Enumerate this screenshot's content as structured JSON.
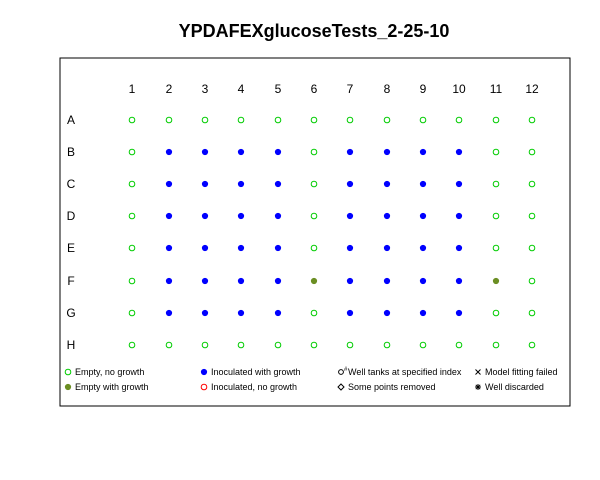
{
  "chart_data": {
    "type": "scatter",
    "title": "YPDAFEXglucoseTests_2-25-10",
    "columns": [
      "1",
      "2",
      "3",
      "4",
      "5",
      "6",
      "7",
      "8",
      "9",
      "10",
      "11",
      "12"
    ],
    "rows": [
      "A",
      "B",
      "C",
      "D",
      "E",
      "F",
      "G",
      "H"
    ],
    "wells": [
      [
        "e",
        "e",
        "e",
        "e",
        "e",
        "e",
        "e",
        "e",
        "e",
        "e",
        "e",
        "e"
      ],
      [
        "e",
        "i",
        "i",
        "i",
        "i",
        "e",
        "i",
        "i",
        "i",
        "i",
        "e",
        "e"
      ],
      [
        "e",
        "i",
        "i",
        "i",
        "i",
        "e",
        "i",
        "i",
        "i",
        "i",
        "e",
        "e"
      ],
      [
        "e",
        "i",
        "i",
        "i",
        "i",
        "e",
        "i",
        "i",
        "i",
        "i",
        "e",
        "e"
      ],
      [
        "e",
        "i",
        "i",
        "i",
        "i",
        "e",
        "i",
        "i",
        "i",
        "i",
        "e",
        "e"
      ],
      [
        "e",
        "i",
        "i",
        "i",
        "i",
        "g",
        "i",
        "i",
        "i",
        "i",
        "g",
        "e"
      ],
      [
        "e",
        "i",
        "i",
        "i",
        "i",
        "e",
        "i",
        "i",
        "i",
        "i",
        "e",
        "e"
      ],
      [
        "e",
        "e",
        "e",
        "e",
        "e",
        "e",
        "e",
        "e",
        "e",
        "e",
        "e",
        "e"
      ]
    ],
    "legend": [
      {
        "code": "e",
        "label": "Empty, no growth",
        "symbol": "open-circle",
        "color": "#00cc00"
      },
      {
        "code": "i",
        "label": "Inoculated with growth",
        "symbol": "filled-circle",
        "color": "#0000ff"
      },
      {
        "code": "t",
        "label": "Well tanks at specified index",
        "symbol": "circle-hash",
        "color": "#000000"
      },
      {
        "code": "f",
        "label": "Model fitting failed",
        "symbol": "cross",
        "color": "#000000"
      },
      {
        "code": "g",
        "label": "Empty with growth",
        "symbol": "filled-circle",
        "color": "#6b8e23"
      },
      {
        "code": "n",
        "label": "Inoculated, no growth",
        "symbol": "open-circle",
        "color": "#ff0000"
      },
      {
        "code": "r",
        "label": "Some points removed",
        "symbol": "diamond",
        "color": "#000000"
      },
      {
        "code": "d",
        "label": "Well discarded",
        "symbol": "asterisk",
        "color": "#000000"
      }
    ]
  }
}
